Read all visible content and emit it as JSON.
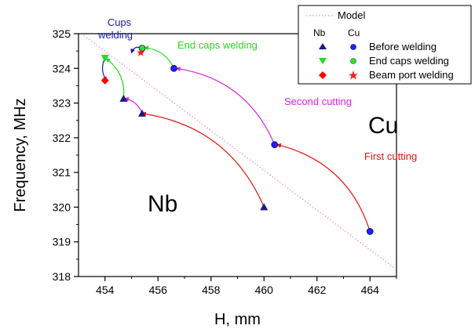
{
  "chart_data": {
    "type": "scatter",
    "xlabel": "H, mm",
    "ylabel": "Frequency, MHz",
    "xlim": [
      453,
      465
    ],
    "ylim": [
      318,
      325
    ],
    "xticks": [
      454,
      456,
      458,
      460,
      462,
      464
    ],
    "yticks": [
      318,
      319,
      320,
      321,
      322,
      323,
      324,
      325
    ],
    "grid": false,
    "legend": {
      "placement": "top-right",
      "model_label": "Model",
      "col_nb": "Nb",
      "col_cu": "Cu",
      "rows": [
        "Before welding",
        "End caps welding",
        "Beam port welding"
      ]
    },
    "model_line": {
      "x": [
        453.2,
        465.0
      ],
      "y": [
        324.95,
        318.2
      ],
      "color": "#ee82ee"
    },
    "series": [
      {
        "name": "Before welding",
        "material": "Nb",
        "marker": "triangle-up",
        "color": "#1a1a80",
        "x": [
          460.0,
          455.4,
          454.7
        ],
        "y": [
          320.0,
          322.7,
          323.13
        ]
      },
      {
        "name": "Before welding",
        "material": "Cu",
        "marker": "circle",
        "color": "#2020ff",
        "x": [
          464.0,
          460.4,
          456.6
        ],
        "y": [
          319.3,
          321.8,
          324.0
        ]
      },
      {
        "name": "End caps welding",
        "material": "Nb",
        "marker": "triangle-down",
        "color": "#22dd22",
        "x": [
          454.0
        ],
        "y": [
          324.3
        ]
      },
      {
        "name": "End caps welding",
        "material": "Cu",
        "marker": "circle",
        "color": "#33dd33",
        "x": [
          455.4
        ],
        "y": [
          324.58
        ]
      },
      {
        "name": "Beam port welding",
        "material": "Nb",
        "marker": "diamond",
        "color": "#ff0000",
        "x": [
          454.0
        ],
        "y": [
          323.65
        ]
      },
      {
        "name": "Beam port welding",
        "material": "Cu",
        "marker": "star",
        "color": "#ee2222",
        "x": [
          455.35
        ],
        "y": [
          324.45
        ]
      }
    ],
    "transitions": [
      {
        "label": "First cutting",
        "color": "#ee1111",
        "from": [
          464.0,
          319.3
        ],
        "to": [
          460.5,
          321.8
        ]
      },
      {
        "label": "",
        "color": "#ee1111",
        "from": [
          460.0,
          320.0
        ],
        "to": [
          455.4,
          322.7
        ]
      },
      {
        "label": "Second cutting",
        "color": "#dd22dd",
        "from": [
          460.4,
          321.8
        ],
        "to": [
          456.7,
          324.0
        ]
      },
      {
        "label": "",
        "color": "#dd22dd",
        "from": [
          455.4,
          322.7
        ],
        "to": [
          454.75,
          323.13
        ]
      },
      {
        "label": "End caps welding",
        "color": "#22dd22",
        "from": [
          456.6,
          324.0
        ],
        "to": [
          455.5,
          324.6
        ]
      },
      {
        "label": "",
        "color": "#22dd22",
        "from": [
          454.7,
          323.13
        ],
        "to": [
          454.05,
          324.28
        ]
      },
      {
        "label": "Cups welding",
        "color": "#1a1aaa",
        "from": [
          455.4,
          324.58
        ],
        "to": [
          455.0,
          324.45
        ]
      },
      {
        "label": "",
        "color": "#1a1aaa",
        "from": [
          454.0,
          324.3
        ],
        "to": [
          454.05,
          323.65
        ]
      }
    ],
    "annotations": [
      {
        "text": "Cups",
        "color": "#1a1aaa"
      },
      {
        "text": "welding",
        "color": "#1a1aaa"
      },
      {
        "text": "End caps welding",
        "color": "#22dd22"
      },
      {
        "text": "Second cutting",
        "color": "#dd22dd"
      },
      {
        "text": "First cutting",
        "color": "#ee1111"
      },
      {
        "text": "Cu",
        "color": "#000000"
      },
      {
        "text": "Nb",
        "color": "#000000"
      }
    ]
  }
}
